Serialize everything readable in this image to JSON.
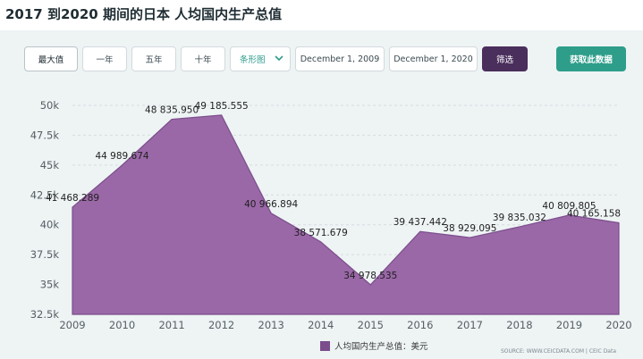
{
  "title": "2017 到2020 期间的日本 人均国内生产总值",
  "toolbar": {
    "max_label": "最大值",
    "one_year_label": "一年",
    "five_year_label": "五年",
    "ten_year_label": "十年",
    "chart_type_label": "条形图",
    "start_date": "December 1, 2009",
    "end_date": "December 1, 2020",
    "filter_label": "筛选",
    "fetch_label": "获取此数据"
  },
  "legend_label": "人均国内生产总值：美元",
  "source_text": "SOURCE: WWW.CEICDATA.COM | CEIC Data",
  "colors": {
    "area_fill": "#9a68a7",
    "area_stroke": "#7b4d8c",
    "filter_button": "#4a2e5c",
    "fetch_button": "#2e9e8a"
  },
  "chart_data": {
    "type": "area",
    "x": [
      "2009",
      "2010",
      "2011",
      "2012",
      "2013",
      "2014",
      "2015",
      "2016",
      "2017",
      "2018",
      "2019",
      "2020"
    ],
    "series": [
      {
        "name": "人均国内生产总值：美元",
        "values": [
          41468.289,
          44989.674,
          48835.95,
          49185.555,
          40966.894,
          38571.679,
          34978.535,
          39437.442,
          38929.095,
          39835.032,
          40809.805,
          40165.158
        ]
      }
    ],
    "data_labels": [
      "41 468.289",
      "44 989.674",
      "48 835.950",
      "49 185.555",
      "40 966.894",
      "38 571.679",
      "34 978.535",
      "39 437.442",
      "38 929.095",
      "39 835.032",
      "40 809.805",
      "40 165.158"
    ],
    "y_ticks": [
      "32.5k",
      "35k",
      "37.5k",
      "40k",
      "42.5k",
      "45k",
      "47.5k",
      "50k"
    ],
    "y_tick_values": [
      32500,
      35000,
      37500,
      40000,
      42500,
      45000,
      47500,
      50000
    ],
    "ylim": [
      32500,
      50000
    ],
    "grid": true,
    "legend": "bottom-center"
  }
}
